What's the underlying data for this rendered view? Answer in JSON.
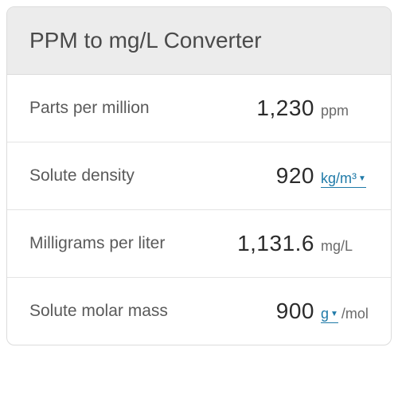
{
  "card": {
    "title": "PPM to mg/L Converter",
    "title_color": "#4a4a4a",
    "title_fontsize": 28,
    "header_bg": "#ececec",
    "border_color": "#dcdcdc",
    "border_radius": 10
  },
  "rows": [
    {
      "label": "Parts per million",
      "value": "1,230",
      "unit": "ppm",
      "unit_is_dropdown": false
    },
    {
      "label": "Solute density",
      "value": "920",
      "unit": "kg/m³",
      "unit_is_dropdown": true
    },
    {
      "label": "Milligrams per liter",
      "value": "1,131.6",
      "unit": "mg/L",
      "unit_is_dropdown": false
    },
    {
      "label": "Solute molar mass",
      "value": "900",
      "unit": "g",
      "unit_is_dropdown": true,
      "unit_suffix": "/mol"
    }
  ],
  "styles": {
    "label_color": "#5a5a5a",
    "label_fontsize": 21,
    "value_color": "#2b2b2b",
    "value_fontsize": 28,
    "unit_color": "#6a6a6a",
    "unit_link_color": "#1f7aa8",
    "unit_fontsize": 18,
    "row_border_color": "#e4e4e4",
    "background": "#ffffff"
  }
}
